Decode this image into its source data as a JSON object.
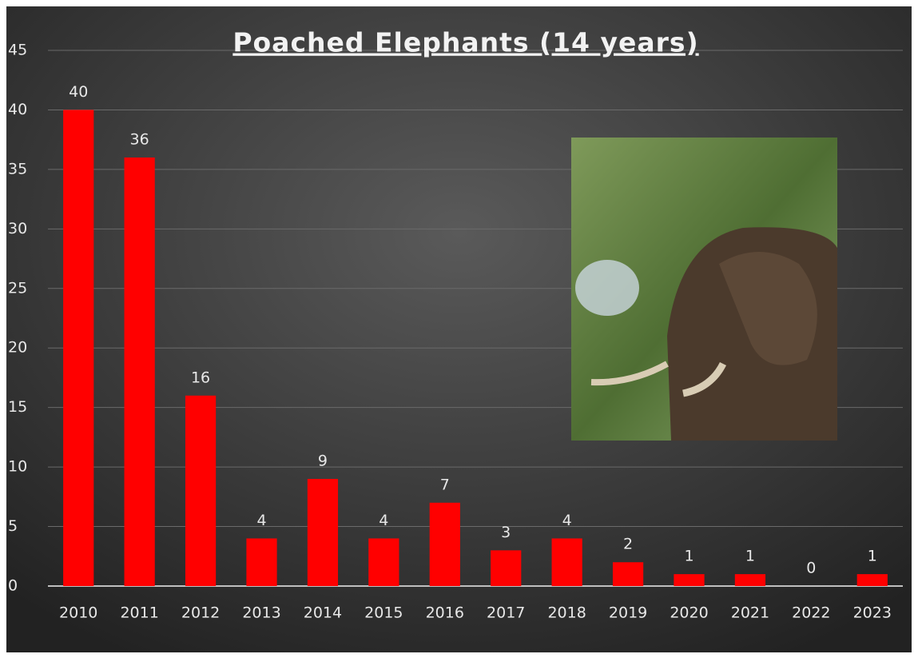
{
  "chart_data": {
    "type": "bar",
    "title": "Poached Elephants (14 years)",
    "categories": [
      "2010",
      "2011",
      "2012",
      "2013",
      "2014",
      "2015",
      "2016",
      "2017",
      "2018",
      "2019",
      "2020",
      "2021",
      "2022",
      "2023"
    ],
    "values": [
      40,
      36,
      16,
      4,
      9,
      4,
      7,
      3,
      4,
      2,
      1,
      1,
      0,
      1
    ],
    "color": "#ff0000",
    "ylim": [
      0,
      45
    ],
    "yticks": [
      0,
      5,
      10,
      15,
      20,
      25,
      30,
      35,
      40,
      45
    ],
    "grid": true
  }
}
